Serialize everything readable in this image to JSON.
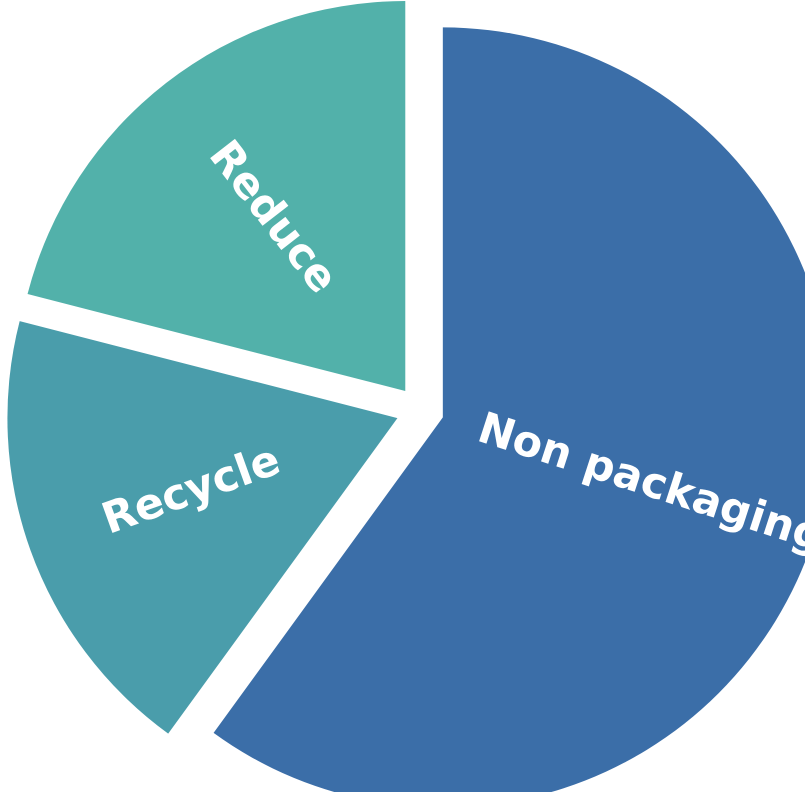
{
  "chart_data": {
    "type": "pie",
    "title": "",
    "legend": "none",
    "slices": [
      {
        "label": "Non packaging",
        "value": 60,
        "color": "#3b6ea8"
      },
      {
        "label": "Recycle",
        "value": 19,
        "color": "#4a9dab"
      },
      {
        "label": "Reduce",
        "value": 21,
        "color": "#52b1aa"
      }
    ]
  }
}
